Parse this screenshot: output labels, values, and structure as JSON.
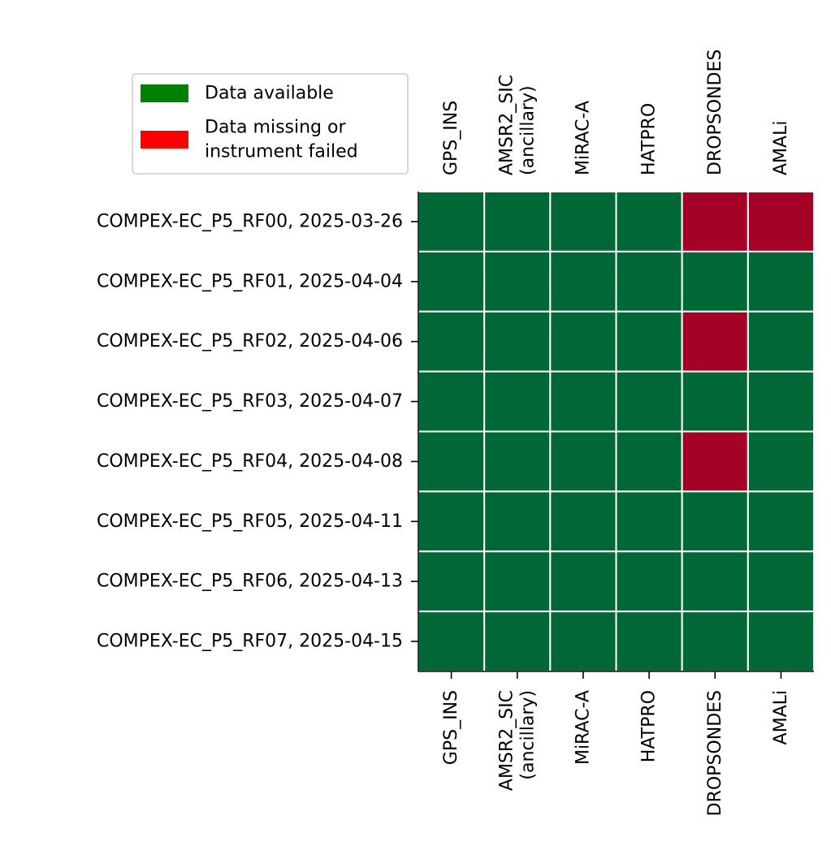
{
  "chart_data": {
    "type": "heatmap",
    "title": "",
    "columns": [
      "GPS_INS",
      "AMSR2_SIC\n(ancillary)",
      "MiRAC-A",
      "HATPRO",
      "DROPSONDES",
      "AMALi"
    ],
    "rows": [
      "COMPEX-EC_P5_RF00, 2025-03-26",
      "COMPEX-EC_P5_RF01, 2025-04-04",
      "COMPEX-EC_P5_RF02, 2025-04-06",
      "COMPEX-EC_P5_RF03, 2025-04-07",
      "COMPEX-EC_P5_RF04, 2025-04-08",
      "COMPEX-EC_P5_RF05, 2025-04-11",
      "COMPEX-EC_P5_RF06, 2025-04-13",
      "COMPEX-EC_P5_RF07, 2025-04-15"
    ],
    "values": [
      [
        1,
        1,
        1,
        1,
        0,
        0
      ],
      [
        1,
        1,
        1,
        1,
        1,
        1
      ],
      [
        1,
        1,
        1,
        1,
        0,
        1
      ],
      [
        1,
        1,
        1,
        1,
        1,
        1
      ],
      [
        1,
        1,
        1,
        1,
        0,
        1
      ],
      [
        1,
        1,
        1,
        1,
        1,
        1
      ],
      [
        1,
        1,
        1,
        1,
        1,
        1
      ],
      [
        1,
        1,
        1,
        1,
        1,
        1
      ]
    ],
    "value_meaning": {
      "1": "Data available",
      "0": "Data missing or instrument failed"
    },
    "cell_colors": {
      "1": "#006837",
      "0": "#a50026"
    },
    "legend": {
      "placement": "top-left",
      "entries": [
        {
          "label": "Data available",
          "color": "#008000"
        },
        {
          "label": "Data missing or\ninstrument failed",
          "color": "#ff0000"
        }
      ]
    },
    "column_labels_top": true,
    "column_labels_bottom": true,
    "grid": true
  }
}
